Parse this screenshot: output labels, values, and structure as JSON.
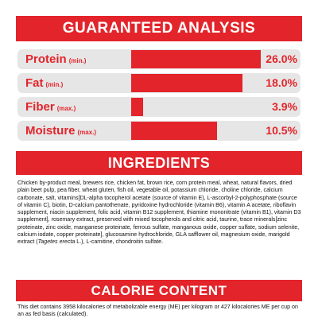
{
  "analysis": {
    "title": "GUARANTEED ANALYSIS",
    "rows": [
      {
        "name": "Protein",
        "qualifier": "(min.)",
        "value": "26.0%"
      },
      {
        "name": "Fat",
        "qualifier": "(min.)",
        "value": "18.0%"
      },
      {
        "name": "Fiber",
        "qualifier": "(max.)",
        "value": "3.9%"
      },
      {
        "name": "Moisture",
        "qualifier": "(max.)",
        "value": "10.5%"
      }
    ]
  },
  "ingredients": {
    "title": "INGREDIENTS",
    "text_before": "Chicken by-product meal, brewers rice, chicken fat, brown rice, corn protein meal, wheat, natural flavors, dried plain beet pulp, pea fiber, wheat gluten, fish oil, vegetable oil, potassium chloride, choline chloride, calcium carbonate, salt, vitamins[DL-alpha tocopherol acetate (source of vitamin E), L-ascorbyl-2-polyphosphate (source of vitamin C), biotin, D-calcium pantothenate, pyridoxine hydrochloride (vitamin B6), vitamin A acetate, riboflavin supplement, niacin supplement, folic acid, vitamin B12 supplement, thiamine mononitrate (vitamin B1), vitamin D3 supplement], rosemary extract, preserved with mixed tocopherols and citric acid, taurine, trace minerals[zinc proteinate, zinc oxide, manganese proteinate, ferrous sulfate, manganous oxide, copper sulfate, sodium selenite, calcium iodate, copper proteinate], glucosamine hydrochloride, GLA safflower oil, magnesium oxide, marigold extract (",
    "text_italic": "Tagetes erecta",
    "text_after": " L.), L-carnitine, chondroitin sulfate."
  },
  "calorie": {
    "title": "CALORIE CONTENT",
    "text": "This diet contains 3958 kilocalories of metabolizable energy (ME) per kilogram or 427 kilocalories ME per cup on an as fed basis (calculated)."
  }
}
